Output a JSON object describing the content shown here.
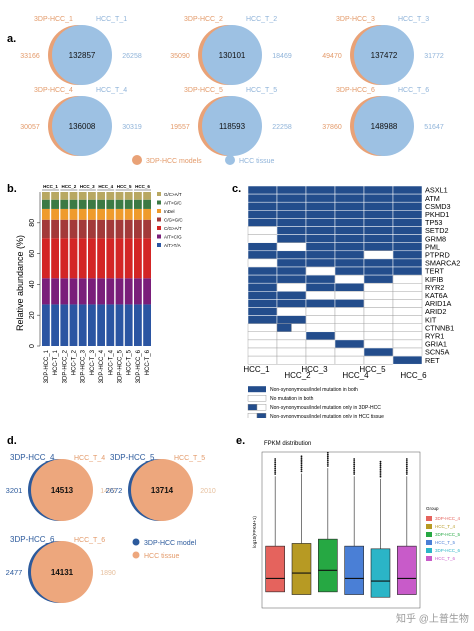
{
  "panel_labels": {
    "a": "a.",
    "b": "b.",
    "c": "c.",
    "d": "d.",
    "e": "e."
  },
  "colors": {
    "model_orange": "#e9a277",
    "tissue_blue": "#9dc1e3",
    "model_text": "#e39a6a",
    "tissue_text": "#8fb3d9",
    "d_model_blue": "#2c5a9c",
    "d_tissue_orange": "#eda77d",
    "matrix_blue": "#234d8c"
  },
  "panel_a": {
    "venns": [
      {
        "left_label": "3DP-HCC_1",
        "right_label": "HCC_T_1",
        "left_only": "33166",
        "shared": "132857",
        "right_only": "26258"
      },
      {
        "left_label": "3DP-HCC_2",
        "right_label": "HCC_T_2",
        "left_only": "35090",
        "shared": "130101",
        "right_only": "18469"
      },
      {
        "left_label": "3DP-HCC_3",
        "right_label": "HCC_T_3",
        "left_only": "49470",
        "shared": "137472",
        "right_only": "31772"
      },
      {
        "left_label": "3DP-HCC_4",
        "right_label": "HCC_T_4",
        "left_only": "30057",
        "shared": "136008",
        "right_only": "30319"
      },
      {
        "left_label": "3DP-HCC_5",
        "right_label": "HCC_T_5",
        "left_only": "19557",
        "shared": "118593",
        "right_only": "22258"
      },
      {
        "left_label": "3DP-HCC_6",
        "right_label": "HCC_T_6",
        "left_only": "37860",
        "shared": "148988",
        "right_only": "51647"
      }
    ],
    "legend": {
      "model": "3DP-HCC models",
      "tissue": "HCC tissue"
    }
  },
  "chart_data": [
    {
      "type": "bar",
      "panel": "b",
      "ylabel": "Relative abundance (%)",
      "ylim": [
        0,
        100
      ],
      "yticks": [
        "0",
        "20",
        "40",
        "60",
        "80"
      ],
      "categories": [
        "3DP-HCC_1",
        "HCC-T_1",
        "3DP-HCC_2",
        "HCC-T_2",
        "3DP-HCC_3",
        "HCC-T_3",
        "3DP-HCC_4",
        "HCC-T_4",
        "3DP-HCC_5",
        "HCC-T_5",
        "3DP-HCC_6",
        "HCC-T_6"
      ],
      "group_labels": [
        "HCC_1",
        "HCC_2",
        "HCC_3",
        "HCC_4",
        "HCC_5",
        "HCC_6"
      ],
      "series": [
        {
          "name": "A/T>T/A",
          "color": "#2b55a2",
          "values": [
            27,
            27,
            27,
            27,
            27,
            27,
            27,
            27,
            27,
            27,
            27,
            27
          ]
        },
        {
          "name": "A/T>C/G",
          "color": "#7a1e7a",
          "values": [
            17,
            17,
            17,
            17,
            17,
            17,
            17,
            17,
            17,
            17,
            17,
            17
          ]
        },
        {
          "name": "C/G>A/T",
          "color": "#d32525",
          "values": [
            26,
            26,
            26,
            26,
            26,
            26,
            26,
            26,
            26,
            26,
            26,
            26
          ]
        },
        {
          "name": "C/G>G/C",
          "color": "#a33a3a",
          "values": [
            12,
            12,
            12,
            12,
            12,
            12,
            12,
            12,
            12,
            12,
            12,
            12
          ]
        },
        {
          "name": "InDel",
          "color": "#ef9b2c",
          "values": [
            7,
            7,
            7,
            7,
            7,
            7,
            7,
            7,
            7,
            7,
            7,
            7
          ]
        },
        {
          "name": "A/T>G/C",
          "color": "#3c7a44",
          "values": [
            6,
            6,
            6,
            6,
            6,
            6,
            6,
            6,
            6,
            6,
            6,
            6
          ]
        },
        {
          "name": "G/C>A/T",
          "color": "#b8a862",
          "values": [
            5,
            5,
            5,
            5,
            5,
            5,
            5,
            5,
            5,
            5,
            5,
            5
          ]
        }
      ]
    },
    {
      "type": "heatmap",
      "panel": "c",
      "columns": [
        "HCC_1",
        "HCC_2",
        "HCC_3",
        "HCC_4",
        "HCC_5",
        "HCC_6"
      ],
      "rows": [
        "ASXL1",
        "ATM",
        "CSMD3",
        "PKHD1",
        "TP53",
        "SETD2",
        "GRM8",
        "PML",
        "PTPRD",
        "SMARCA2",
        "TERT",
        "KIFIB",
        "RYR2",
        "KAT6A",
        "ARID1A",
        "ARID2",
        "KIT",
        "CTNNB1",
        "RYR1",
        "GRIA1",
        "SCN5A",
        "RET"
      ],
      "cells": [
        [
          "both",
          "both",
          "both",
          "both",
          "both",
          "both"
        ],
        [
          "both",
          "both",
          "both",
          "both",
          "both",
          "both"
        ],
        [
          "both",
          "both",
          "both",
          "both",
          "both",
          "both"
        ],
        [
          "both",
          "both",
          "both",
          "both",
          "both",
          "both"
        ],
        [
          "both",
          "both",
          "both",
          "both",
          "both",
          "both"
        ],
        [
          "none",
          "both",
          "both",
          "both",
          "both",
          "both"
        ],
        [
          "none",
          "both",
          "both",
          "both",
          "both",
          "both"
        ],
        [
          "both",
          "none",
          "both",
          "both",
          "both",
          "both"
        ],
        [
          "both",
          "both",
          "both",
          "both",
          "none",
          "both"
        ],
        [
          "none",
          "both",
          "both",
          "both",
          "both",
          "both"
        ],
        [
          "both",
          "both",
          "none",
          "both",
          "both",
          "both"
        ],
        [
          "both",
          "both",
          "both",
          "none",
          "both",
          "none"
        ],
        [
          "both",
          "none",
          "both",
          "both",
          "none",
          "none"
        ],
        [
          "both",
          "both",
          "none",
          "none",
          "none",
          "none"
        ],
        [
          "both",
          "both",
          "both",
          "both",
          "none",
          "none"
        ],
        [
          "both",
          "none",
          "none",
          "none",
          "none",
          "none"
        ],
        [
          "both",
          "both",
          "none",
          "none",
          "none",
          "none"
        ],
        [
          "none",
          "model",
          "none",
          "none",
          "none",
          "none"
        ],
        [
          "none",
          "none",
          "both",
          "none",
          "none",
          "none"
        ],
        [
          "none",
          "none",
          "none",
          "both",
          "none",
          "none"
        ],
        [
          "none",
          "none",
          "none",
          "none",
          "both",
          "none"
        ],
        [
          "none",
          "none",
          "none",
          "none",
          "none",
          "both"
        ]
      ],
      "legend": [
        {
          "key": "both",
          "label": "Non-synonymous/indel mutation in both"
        },
        {
          "key": "none",
          "label": "No mutation in both"
        },
        {
          "key": "model",
          "label": "Non-synonymous/indel mutation only in 3DP-HCC"
        },
        {
          "key": "tissue",
          "label": "Non-synonymous/indel mutation only in HCC tissue"
        }
      ]
    },
    {
      "type": "box",
      "panel": "e",
      "title": "FPKM distribution",
      "ylabel": "log10(FPKM+1)",
      "legend_title": "Group",
      "groups": [
        {
          "name": "3DP-HCC_4",
          "color": "#e5635d",
          "q1": 0.3,
          "median": 0.55,
          "q3": 1.15,
          "whisker_high": 2.45
        },
        {
          "name": "HCC_T_4",
          "color": "#b79a23",
          "q1": 0.25,
          "median": 0.65,
          "q3": 1.2,
          "whisker_high": 2.5
        },
        {
          "name": "3DP-HCC_5",
          "color": "#26a843",
          "q1": 0.3,
          "median": 0.7,
          "q3": 1.28,
          "whisker_high": 2.6
        },
        {
          "name": "HCC_T_5",
          "color": "#4a7fd6",
          "q1": 0.25,
          "median": 0.55,
          "q3": 1.15,
          "whisker_high": 2.45
        },
        {
          "name": "3DP-HCC_6",
          "color": "#2bb5c7",
          "q1": 0.2,
          "median": 0.5,
          "q3": 1.1,
          "whisker_high": 2.4
        },
        {
          "name": "HCC_T_6",
          "color": "#c85bc9",
          "q1": 0.25,
          "median": 0.55,
          "q3": 1.15,
          "whisker_high": 2.45
        }
      ]
    }
  ],
  "panel_d": {
    "venns": [
      {
        "left_label": "3DP-HCC_4",
        "right_label": "HCC_T_4",
        "left_only": "3201",
        "shared": "14513",
        "right_only": "1472"
      },
      {
        "left_label": "3DP-HCC_5",
        "right_label": "HCC_T_5",
        "left_only": "2672",
        "shared": "13714",
        "right_only": "2010"
      },
      {
        "left_label": "3DP-HCC_6",
        "right_label": "HCC_T_6",
        "left_only": "2477",
        "shared": "14131",
        "right_only": "1890"
      }
    ],
    "legend": {
      "model": "3DP-HCC model",
      "tissue": "HCC tissue"
    }
  },
  "watermark": "知乎 @上普生物"
}
